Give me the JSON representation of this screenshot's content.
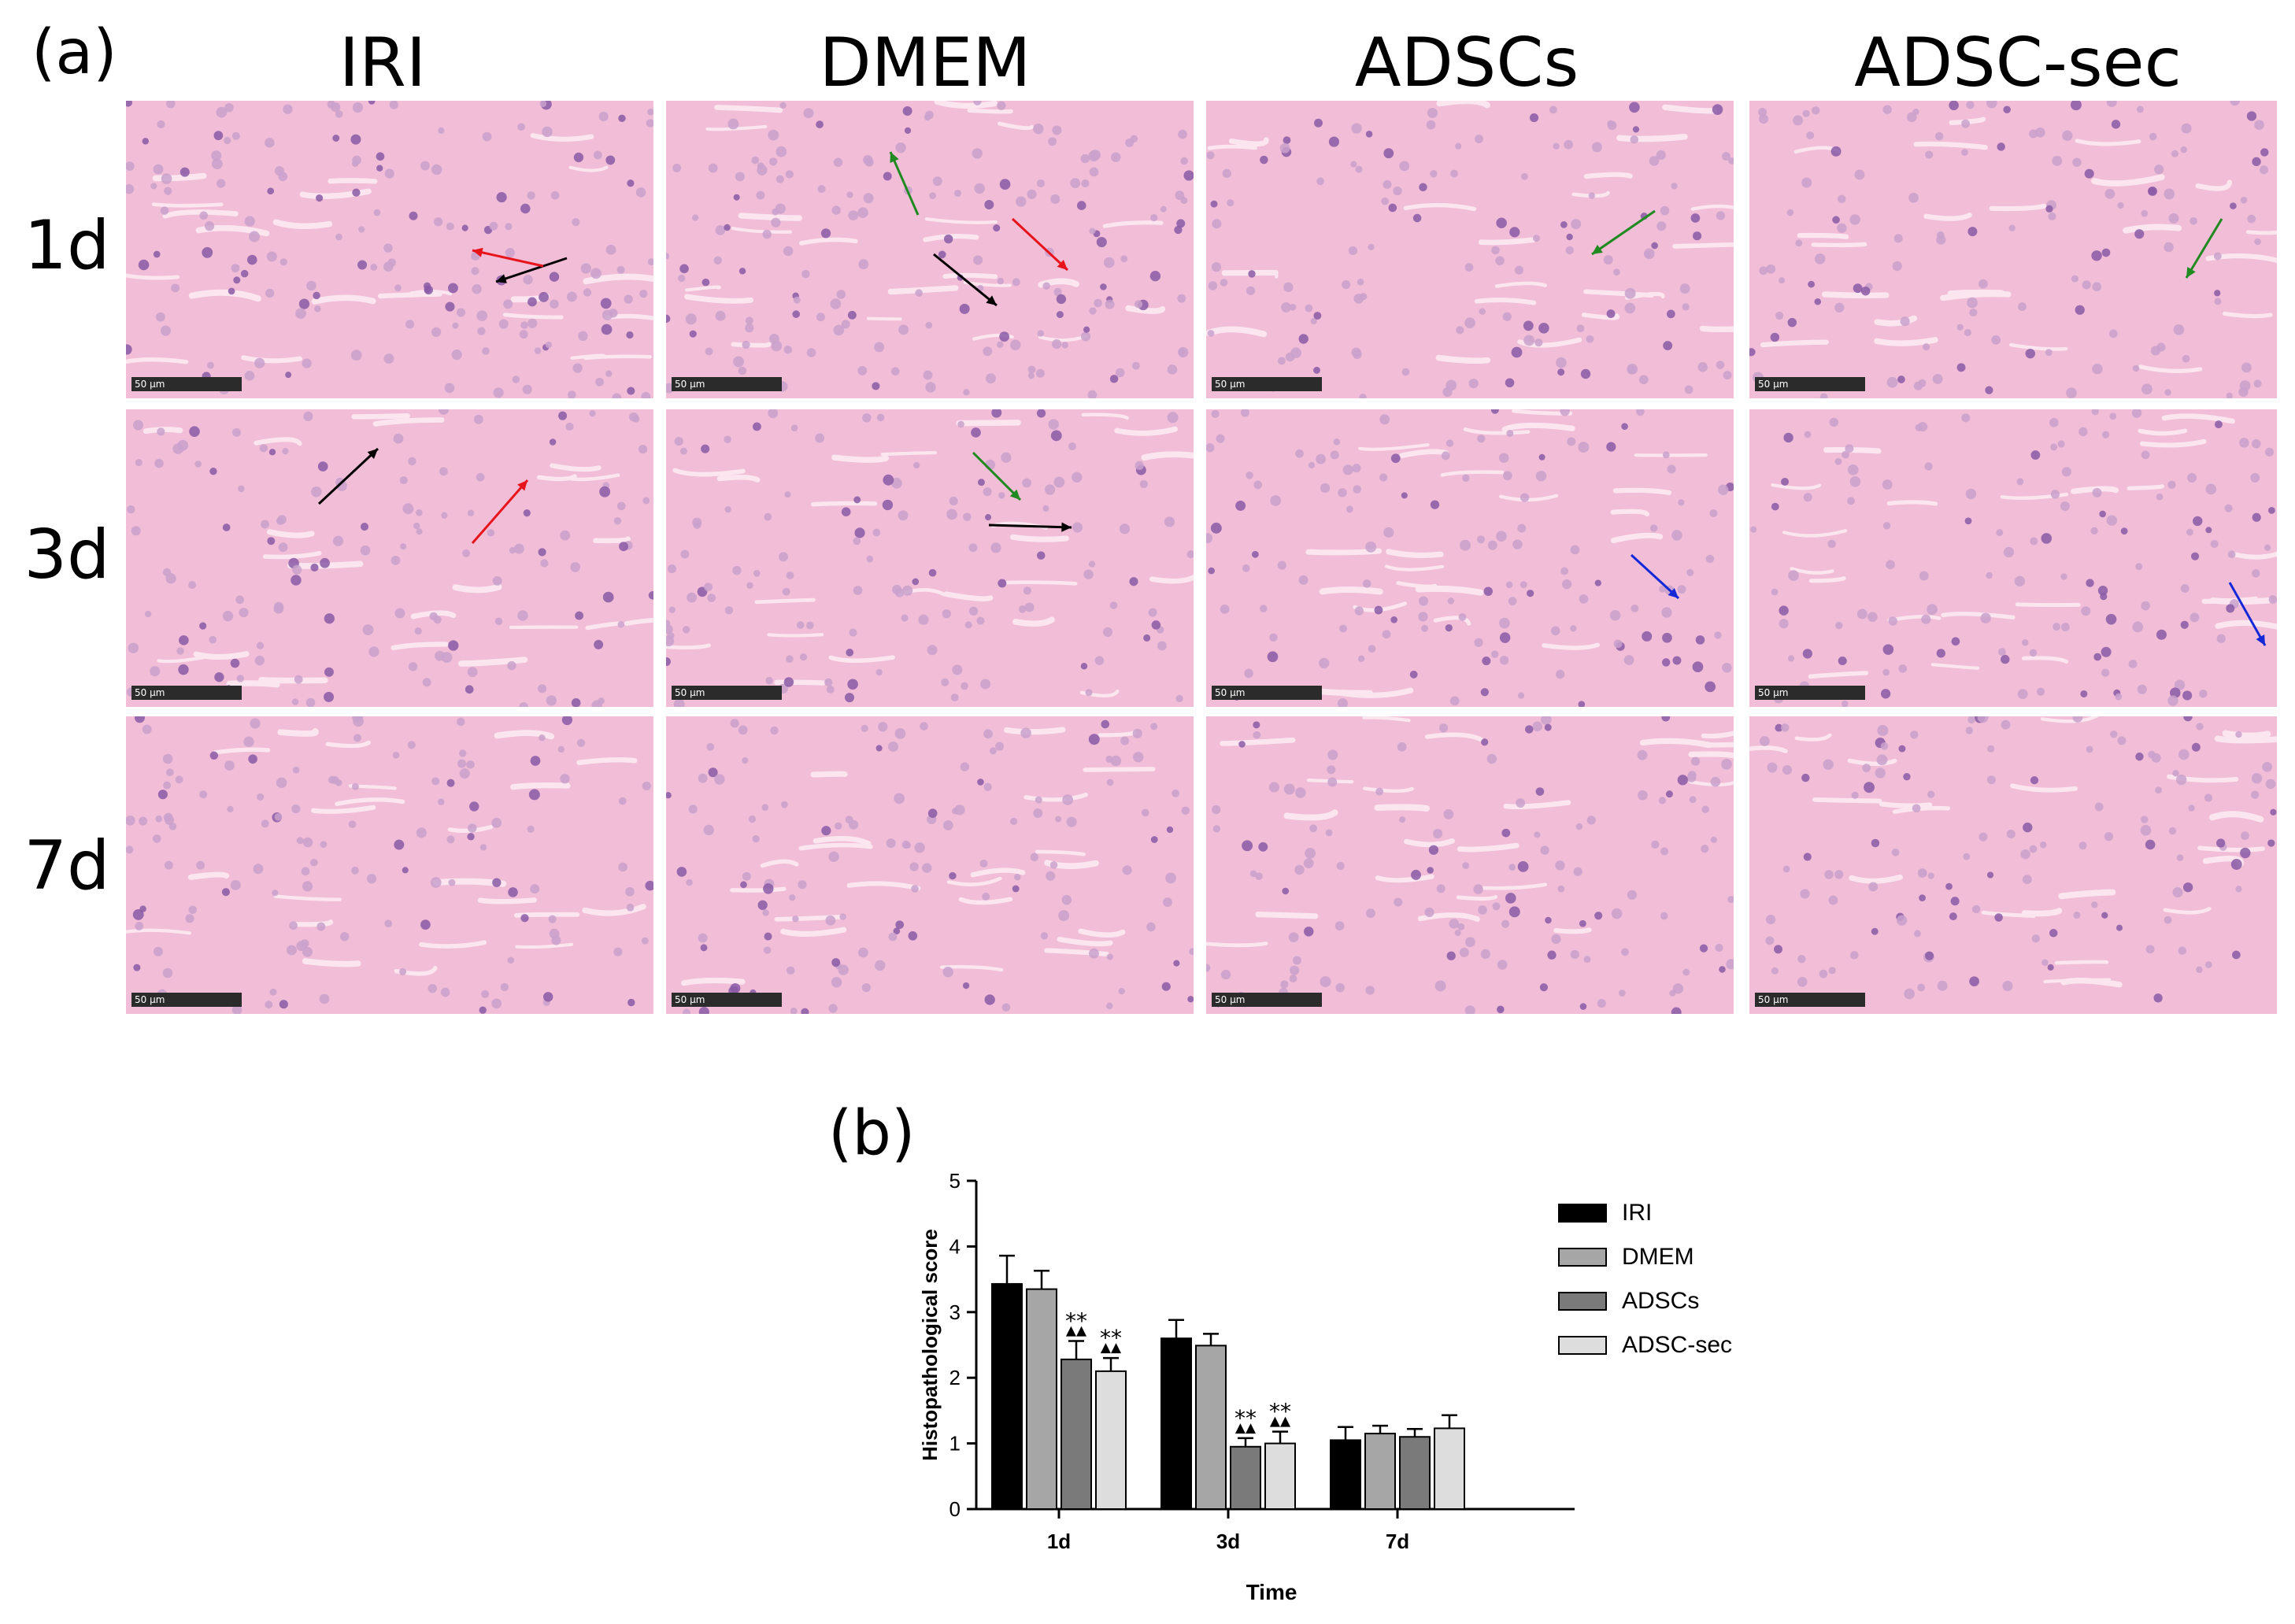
{
  "panel_a": {
    "label": "(a)",
    "columns": [
      "IRI",
      "DMEM",
      "ADSCs",
      "ADSC-sec"
    ],
    "rows": [
      "1d",
      "3d",
      "7d"
    ],
    "scale_bar": "50 μm"
  },
  "panel_b": {
    "label": "(b)"
  },
  "colors": {
    "tissue": "#f1bdd7",
    "IRI": "#000000",
    "DMEM": "#a6a6a6",
    "ADSCs": "#7a7a7a",
    "ADSC-sec": "#dddddd",
    "arrow_black": "#000000",
    "arrow_red": "#e8141c",
    "arrow_green": "#1f8a1f",
    "arrow_blue": "#1428d8"
  },
  "chart_data": {
    "type": "bar",
    "categories": [
      "1d",
      "3d",
      "7d"
    ],
    "xlabel": "Time",
    "ylabel": "Histopathological score",
    "ylim": [
      0,
      5
    ],
    "yticks": [
      0,
      1,
      2,
      3,
      4,
      5
    ],
    "legend_position": "right",
    "grid": false,
    "series": [
      {
        "name": "IRI",
        "values": [
          3.43,
          2.6,
          1.05
        ],
        "errors": [
          0.43,
          0.28,
          0.2
        ]
      },
      {
        "name": "DMEM",
        "values": [
          3.35,
          2.49,
          1.15
        ],
        "errors": [
          0.28,
          0.18,
          0.12
        ]
      },
      {
        "name": "ADSCs",
        "values": [
          2.28,
          0.95,
          1.1
        ],
        "errors": [
          0.28,
          0.13,
          0.12
        ]
      },
      {
        "name": "ADSC-sec",
        "values": [
          2.1,
          1.0,
          1.23
        ],
        "errors": [
          0.2,
          0.18,
          0.2
        ]
      }
    ],
    "annotations": [
      {
        "category": "1d",
        "series": "ADSCs",
        "text": "**",
        "symbol": "▲▲"
      },
      {
        "category": "1d",
        "series": "ADSC-sec",
        "text": "**",
        "symbol": "▲▲"
      },
      {
        "category": "3d",
        "series": "ADSCs",
        "text": "**",
        "symbol": "▲▲"
      },
      {
        "category": "3d",
        "series": "ADSC-sec",
        "text": "**",
        "symbol": "▲▲"
      }
    ]
  }
}
